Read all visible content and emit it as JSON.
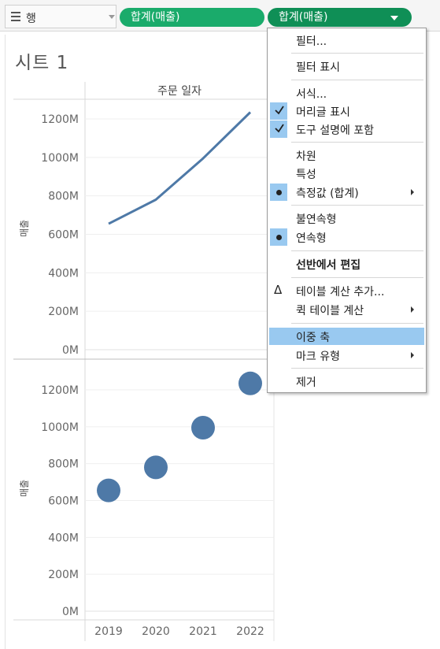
{
  "shelf": {
    "label": "행",
    "pill1": "합계(매출)",
    "pill2": "합계(매출)"
  },
  "sheet": {
    "title": "시트 1"
  },
  "chart_data": [
    {
      "type": "line",
      "header": "주문 일자",
      "ylabel": "매출",
      "x": [
        "2019",
        "2020",
        "2021",
        "2022"
      ],
      "values": [
        655,
        780,
        995,
        1235
      ],
      "ylim": [
        0,
        1320
      ],
      "yticks": [
        "0M",
        "200M",
        "400M",
        "600M",
        "800M",
        "1000M",
        "1200M"
      ],
      "color": "#4e79a7"
    },
    {
      "type": "scatter",
      "ylabel": "매출",
      "x": [
        "2019",
        "2020",
        "2021",
        "2022"
      ],
      "values": [
        655,
        780,
        995,
        1235
      ],
      "ylim": [
        0,
        1320
      ],
      "yticks": [
        "0M",
        "200M",
        "400M",
        "600M",
        "800M",
        "1000M",
        "1200M"
      ],
      "color": "#4e79a7"
    }
  ],
  "menu": {
    "items": [
      {
        "label": "필터...",
        "mark": ""
      },
      {
        "label": "필터 표시",
        "mark": ""
      },
      {
        "label": "서식...",
        "mark": ""
      },
      {
        "label": "머리글 표시",
        "mark": "check"
      },
      {
        "label": "도구 설명에 포함",
        "mark": "check"
      },
      {
        "label": "차원",
        "mark": ""
      },
      {
        "label": "특성",
        "mark": ""
      },
      {
        "label": "측정값 (합계)",
        "mark": "dot",
        "submenu": true
      },
      {
        "label": "불연속형",
        "mark": ""
      },
      {
        "label": "연속형",
        "mark": "dot"
      },
      {
        "label": "선반에서 편집",
        "mark": "",
        "bold": true
      },
      {
        "label": "테이블 계산 추가...",
        "mark": "delta"
      },
      {
        "label": "퀵 테이블 계산",
        "mark": "",
        "submenu": true
      },
      {
        "label": "이중 축",
        "mark": "",
        "highlight": true
      },
      {
        "label": "마크 유형",
        "mark": "",
        "submenu": true
      },
      {
        "label": "제거",
        "mark": ""
      }
    ]
  }
}
